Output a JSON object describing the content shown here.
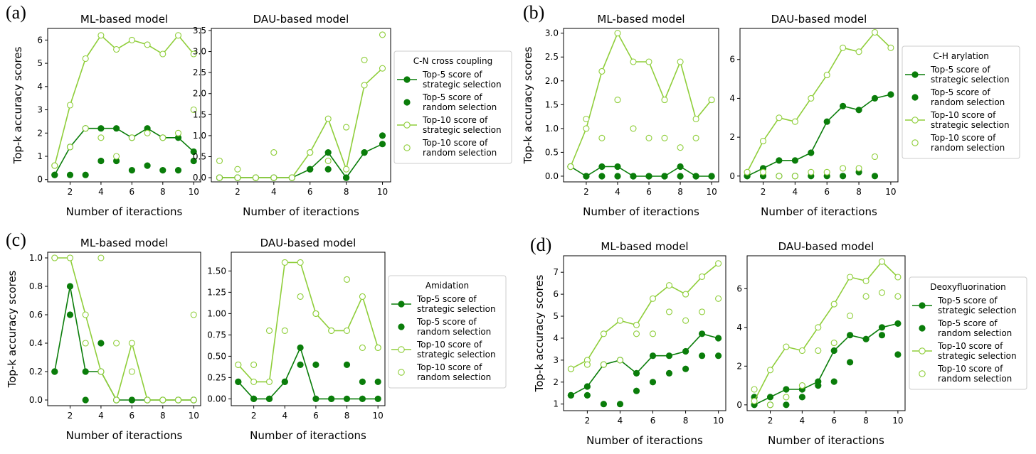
{
  "colors": {
    "top5": "#0a7d0a",
    "top10": "#8fce3a",
    "axis": "#000000",
    "legend_border": "#cccccc"
  },
  "legend_entries": [
    "Top-5 score of\nstrategic selection",
    "Top-5 score of\nrandom selection",
    "Top-10 score of\nstrategic selection",
    "Top-10 score of\nrandom selection"
  ],
  "chart_data": [
    {
      "label": "(a)",
      "legend_title": "C-N cross coupling",
      "subplots": [
        {
          "type": "line",
          "title": "ML-based model",
          "xlabel": "Number of iteractions",
          "ylabel": "Top-k accuracy scores",
          "xlim": [
            0.55,
            10.45
          ],
          "ylim": [
            -0.1,
            6.5
          ],
          "xticks": [
            2,
            4,
            6,
            8,
            10
          ],
          "yticks": [
            0,
            1,
            2,
            3,
            4,
            5,
            6
          ],
          "ytick_labels": [
            "0",
            "1",
            "2",
            "3",
            "4",
            "5",
            "6"
          ],
          "x": [
            1,
            2,
            3,
            4,
            5,
            6,
            7,
            8,
            9,
            10
          ],
          "series": [
            {
              "name": "Top-5 score of strategic selection",
              "style": "line-filled",
              "values": [
                0.2,
                1.4,
                2.2,
                2.2,
                2.2,
                1.8,
                2.2,
                1.8,
                1.8,
                1.2
              ]
            },
            {
              "name": "Top-5 score of random selection",
              "style": "filled",
              "values": [
                0.2,
                0.2,
                0.2,
                0.8,
                0.8,
                0.4,
                0.6,
                0.4,
                0.4,
                0.8
              ]
            },
            {
              "name": "Top-10 score of strategic selection",
              "style": "line-open",
              "values": [
                0.6,
                3.2,
                5.2,
                6.2,
                5.6,
                6.0,
                5.8,
                5.4,
                6.2,
                5.4
              ]
            },
            {
              "name": "Top-10 score of random selection",
              "style": "open",
              "values": [
                0.6,
                1.4,
                2.2,
                1.8,
                1.0,
                1.8,
                2.0,
                1.8,
                2.0,
                3.0
              ]
            }
          ]
        },
        {
          "type": "line",
          "title": "DAU-based model",
          "xlabel": "Number of iteractions",
          "xlim": [
            0.55,
            10.45
          ],
          "ylim": [
            -0.1,
            3.55
          ],
          "xticks": [
            2,
            4,
            6,
            8,
            10
          ],
          "yticks": [
            0,
            0.5,
            1,
            1.5,
            2,
            2.5,
            3,
            3.5
          ],
          "ytick_labels": [
            "0.0",
            "0.5",
            "1.0",
            "1.5",
            "2.0",
            "2.5",
            "3.0",
            "3.5"
          ],
          "x": [
            1,
            2,
            3,
            4,
            5,
            6,
            7,
            8,
            9,
            10
          ],
          "series": [
            {
              "name": "Top-5 score of strategic selection",
              "style": "line-filled",
              "values": [
                0,
                0,
                0,
                0,
                0,
                0.2,
                0.6,
                0,
                0.6,
                0.8
              ]
            },
            {
              "name": "Top-5 score of random selection",
              "style": "filled",
              "values": [
                0,
                0,
                0,
                0,
                0,
                0.2,
                0.2,
                0,
                0.6,
                1.0
              ]
            },
            {
              "name": "Top-10 score of strategic selection",
              "style": "line-open",
              "values": [
                0,
                0,
                0,
                0,
                0,
                0.6,
                1.4,
                0.2,
                2.2,
                2.6
              ]
            },
            {
              "name": "Top-10 score of random selection",
              "style": "open",
              "values": [
                0.4,
                0.2,
                0,
                0.6,
                0,
                0.6,
                0.4,
                1.2,
                2.8,
                3.4
              ]
            }
          ]
        }
      ]
    },
    {
      "label": "(b)",
      "legend_title": "C-H arylation",
      "subplots": [
        {
          "type": "line",
          "title": "ML-based model",
          "xlabel": "Number of iteractions",
          "ylabel": "Top-k accuracy scores",
          "xlim": [
            0.55,
            10.45
          ],
          "ylim": [
            -0.12,
            3.1
          ],
          "xticks": [
            2,
            4,
            6,
            8,
            10
          ],
          "yticks": [
            0,
            0.5,
            1,
            1.5,
            2,
            2.5,
            3
          ],
          "ytick_labels": [
            "0.0",
            "0.5",
            "1.0",
            "1.5",
            "2.0",
            "2.5",
            "3.0"
          ],
          "x": [
            1,
            2,
            3,
            4,
            5,
            6,
            7,
            8,
            9,
            10
          ],
          "series": [
            {
              "name": "Top-5 score of strategic selection",
              "style": "line-filled",
              "values": [
                0.2,
                0,
                0.2,
                0.2,
                0,
                0,
                0,
                0.2,
                0,
                0
              ]
            },
            {
              "name": "Top-5 score of random selection",
              "style": "filled",
              "values": [
                0.2,
                0,
                0,
                0,
                0,
                0,
                0,
                0,
                0,
                0
              ]
            },
            {
              "name": "Top-10 score of strategic selection",
              "style": "line-open",
              "values": [
                0.2,
                1.0,
                2.2,
                3.0,
                2.4,
                2.4,
                1.6,
                2.4,
                1.2,
                1.6
              ]
            },
            {
              "name": "Top-10 score of random selection",
              "style": "open",
              "values": [
                0.2,
                1.2,
                0.8,
                1.6,
                1.0,
                0.8,
                0.8,
                0.6,
                0.8,
                1.6
              ]
            }
          ]
        },
        {
          "type": "line",
          "title": "DAU-based model",
          "xlabel": "Number of iteractions",
          "xlim": [
            0.55,
            10.45
          ],
          "ylim": [
            -0.3,
            7.6
          ],
          "xticks": [
            2,
            4,
            6,
            8,
            10
          ],
          "yticks": [
            0,
            2,
            4,
            6
          ],
          "ytick_labels": [
            "0",
            "2",
            "4",
            "6"
          ],
          "x": [
            1,
            2,
            3,
            4,
            5,
            6,
            7,
            8,
            9,
            10
          ],
          "series": [
            {
              "name": "Top-5 score of strategic selection",
              "style": "line-filled",
              "values": [
                0,
                0.4,
                0.8,
                0.8,
                1.2,
                2.8,
                3.6,
                3.4,
                4.0,
                4.2
              ]
            },
            {
              "name": "Top-5 score of random selection",
              "style": "filled",
              "values": [
                0,
                0,
                0,
                0,
                0,
                0,
                0,
                0.2,
                0,
                null
              ]
            },
            {
              "name": "Top-10 score of strategic selection",
              "style": "line-open",
              "values": [
                0.2,
                1.8,
                3.0,
                2.8,
                4.0,
                5.2,
                6.6,
                6.4,
                7.4,
                6.6
              ]
            },
            {
              "name": "Top-10 score of random selection",
              "style": "open",
              "values": [
                0.2,
                0.2,
                0,
                0,
                0.2,
                0.2,
                0.4,
                0.4,
                1.0,
                null
              ]
            }
          ]
        }
      ]
    },
    {
      "label": "(c)",
      "legend_title": "Amidation",
      "subplots": [
        {
          "type": "line",
          "title": "ML-based model",
          "xlabel": "Number of iteractions",
          "ylabel": "Top-k accuracy scores",
          "xlim": [
            0.55,
            10.45
          ],
          "ylim": [
            -0.04,
            1.04
          ],
          "xticks": [
            2,
            4,
            6,
            8,
            10
          ],
          "yticks": [
            0,
            0.2,
            0.4,
            0.6,
            0.8,
            1.0
          ],
          "ytick_labels": [
            "0.0",
            "0.2",
            "0.4",
            "0.6",
            "0.8",
            "1.0"
          ],
          "x": [
            1,
            2,
            3,
            4,
            5,
            6,
            7,
            8,
            9,
            10
          ],
          "series": [
            {
              "name": "Top-5 score of strategic selection",
              "style": "line-filled",
              "values": [
                0.2,
                0.8,
                0.2,
                0.2,
                0,
                0,
                0,
                0,
                0,
                0
              ]
            },
            {
              "name": "Top-5 score of random selection",
              "style": "filled",
              "values": [
                0.2,
                0.6,
                0,
                0.4,
                0,
                0,
                0,
                0,
                0,
                0
              ]
            },
            {
              "name": "Top-10 score of strategic selection",
              "style": "line-open",
              "values": [
                1.0,
                1.0,
                0.6,
                0.2,
                0,
                0.4,
                0,
                0,
                0,
                0
              ]
            },
            {
              "name": "Top-10 score of random selection",
              "style": "open",
              "values": [
                1.0,
                1.0,
                0.4,
                1.0,
                0.4,
                0.2,
                0,
                0,
                0,
                0.6
              ]
            }
          ]
        },
        {
          "type": "line",
          "title": "DAU-based model",
          "xlabel": "Number of iteractions",
          "xlim": [
            0.55,
            10.45
          ],
          "ylim": [
            -0.08,
            1.72
          ],
          "xticks": [
            2,
            4,
            6,
            8,
            10
          ],
          "yticks": [
            0,
            0.25,
            0.5,
            0.75,
            1.0,
            1.25,
            1.5
          ],
          "ytick_labels": [
            "0.00",
            "0.25",
            "0.50",
            "0.75",
            "1.00",
            "1.25",
            "1.50"
          ],
          "x": [
            1,
            2,
            3,
            4,
            5,
            6,
            7,
            8,
            9,
            10
          ],
          "series": [
            {
              "name": "Top-5 score of strategic selection",
              "style": "line-filled",
              "values": [
                0.2,
                0,
                0,
                0.2,
                0.6,
                0,
                0,
                0,
                0,
                0
              ]
            },
            {
              "name": "Top-5 score of random selection",
              "style": "filled",
              "values": [
                0.2,
                0,
                0,
                0.2,
                0.4,
                0.4,
                0,
                0.4,
                0.2,
                0.2
              ]
            },
            {
              "name": "Top-10 score of strategic selection",
              "style": "line-open",
              "values": [
                0.4,
                0.2,
                0.2,
                1.6,
                1.6,
                1.0,
                0.8,
                0.8,
                1.2,
                0.6
              ]
            },
            {
              "name": "Top-10 score of random selection",
              "style": "open",
              "values": [
                0.4,
                0.4,
                0.8,
                0.8,
                1.2,
                1.0,
                0.8,
                1.4,
                0.6,
                0.6
              ]
            }
          ]
        }
      ]
    },
    {
      "label": "(d)",
      "legend_title": "Deoxyfluorination",
      "subplots": [
        {
          "type": "line",
          "title": "ML-based model",
          "xlabel": "Number of iteractions",
          "ylabel": "Top-k accuracy scores",
          "xlim": [
            0.55,
            10.45
          ],
          "ylim": [
            0.7,
            7.75
          ],
          "xticks": [
            2,
            4,
            6,
            8,
            10
          ],
          "yticks": [
            1,
            2,
            3,
            4,
            5,
            6,
            7
          ],
          "ytick_labels": [
            "1",
            "2",
            "3",
            "4",
            "5",
            "6",
            "7"
          ],
          "x": [
            1,
            2,
            3,
            4,
            5,
            6,
            7,
            8,
            9,
            10
          ],
          "series": [
            {
              "name": "Top-5 score of strategic selection",
              "style": "line-filled",
              "values": [
                1.4,
                1.8,
                2.8,
                3.0,
                2.4,
                3.2,
                3.2,
                3.4,
                4.2,
                4.0
              ]
            },
            {
              "name": "Top-5 score of random selection",
              "style": "filled",
              "values": [
                1.4,
                1.4,
                1.0,
                1.0,
                1.6,
                2.0,
                2.4,
                2.6,
                3.2,
                3.2
              ]
            },
            {
              "name": "Top-10 score of strategic selection",
              "style": "line-open",
              "values": [
                2.6,
                3.0,
                4.2,
                4.8,
                4.6,
                5.8,
                6.4,
                6.0,
                6.8,
                7.4
              ]
            },
            {
              "name": "Top-10 score of random selection",
              "style": "open",
              "values": [
                2.6,
                2.8,
                2.8,
                3.0,
                4.2,
                4.2,
                5.2,
                4.8,
                5.2,
                5.8
              ]
            }
          ]
        },
        {
          "type": "line",
          "title": "DAU-based model",
          "xlabel": "Number of iteractions",
          "xlim": [
            0.55,
            10.45
          ],
          "ylim": [
            -0.3,
            7.7
          ],
          "xticks": [
            2,
            4,
            6,
            8,
            10
          ],
          "yticks": [
            0,
            2,
            4,
            6
          ],
          "ytick_labels": [
            "0",
            "2",
            "4",
            "6"
          ],
          "x": [
            1,
            2,
            3,
            4,
            5,
            6,
            7,
            8,
            9,
            10
          ],
          "series": [
            {
              "name": "Top-5 score of strategic selection",
              "style": "line-filled",
              "values": [
                0,
                0.4,
                0.8,
                0.8,
                1.2,
                2.8,
                3.6,
                3.4,
                4.0,
                4.2
              ]
            },
            {
              "name": "Top-5 score of random selection",
              "style": "filled",
              "values": [
                0.4,
                0,
                0,
                0.4,
                1.0,
                1.2,
                2.2,
                null,
                3.6,
                2.6
              ]
            },
            {
              "name": "Top-10 score of strategic selection",
              "style": "line-open",
              "values": [
                0.2,
                1.8,
                3.0,
                2.8,
                4.0,
                5.2,
                6.6,
                6.4,
                7.4,
                6.6
              ]
            },
            {
              "name": "Top-10 score of random selection",
              "style": "open",
              "values": [
                0.8,
                0,
                0.4,
                1.0,
                2.8,
                3.2,
                4.6,
                5.6,
                5.8,
                5.6
              ]
            }
          ]
        }
      ]
    }
  ]
}
